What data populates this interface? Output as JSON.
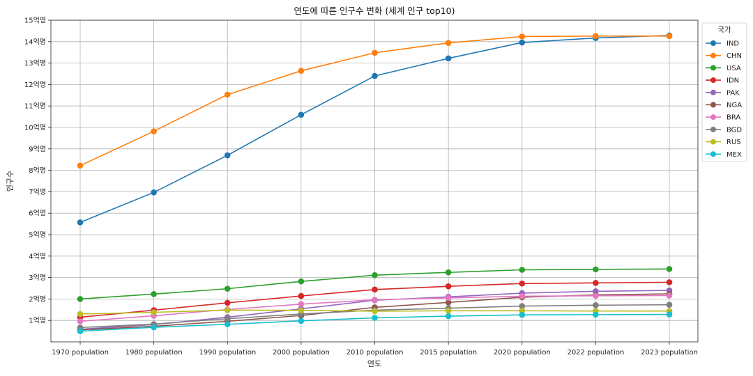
{
  "chart_data": {
    "type": "line",
    "title": "연도에 따른 인구수 변화 (세계 인구 top10)",
    "xlabel": "연도",
    "ylabel": "인구수",
    "categories": [
      "1970 population",
      "1980 population",
      "1990 population",
      "2000 population",
      "2010 population",
      "2015 population",
      "2020 population",
      "2022 population",
      "2023 population"
    ],
    "y_unit": "억명",
    "ylim": [
      0,
      15
    ],
    "yticks": [
      "1억명",
      "2억명",
      "3억명",
      "4억명",
      "5억명",
      "6억명",
      "7억명",
      "8억명",
      "9억명",
      "10억명",
      "11억명",
      "12억명",
      "13억명",
      "14억명",
      "15억명"
    ],
    "grid": true,
    "legend_title": "국가",
    "legend_position": "outside-top-right",
    "series": [
      {
        "name": "IND",
        "color": "#1f77b4",
        "values": [
          5.57,
          6.97,
          8.7,
          10.59,
          12.4,
          13.22,
          13.96,
          14.17,
          14.29
        ]
      },
      {
        "name": "CHN",
        "color": "#ff7f0e",
        "values": [
          8.22,
          9.82,
          11.53,
          12.64,
          13.48,
          13.94,
          14.24,
          14.26,
          14.26
        ]
      },
      {
        "name": "USA",
        "color": "#2ca02c",
        "values": [
          2.0,
          2.23,
          2.48,
          2.82,
          3.11,
          3.24,
          3.36,
          3.38,
          3.4
        ]
      },
      {
        "name": "IDN",
        "color": "#d62728",
        "values": [
          1.15,
          1.48,
          1.82,
          2.14,
          2.44,
          2.59,
          2.72,
          2.75,
          2.78
        ]
      },
      {
        "name": "PAK",
        "color": "#9467bd",
        "values": [
          0.59,
          0.81,
          1.15,
          1.54,
          1.94,
          2.1,
          2.27,
          2.36,
          2.4
        ]
      },
      {
        "name": "NGA",
        "color": "#8c564b",
        "values": [
          0.56,
          0.73,
          0.96,
          1.23,
          1.61,
          1.84,
          2.08,
          2.19,
          2.24
        ]
      },
      {
        "name": "BRA",
        "color": "#e377c2",
        "values": [
          0.96,
          1.22,
          1.51,
          1.76,
          1.96,
          2.05,
          2.13,
          2.15,
          2.16
        ]
      },
      {
        "name": "BGD",
        "color": "#7f7f7f",
        "values": [
          0.67,
          0.83,
          1.08,
          1.3,
          1.48,
          1.57,
          1.67,
          1.71,
          1.73
        ]
      },
      {
        "name": "RUS",
        "color": "#bcbd22",
        "values": [
          1.3,
          1.38,
          1.48,
          1.47,
          1.43,
          1.45,
          1.45,
          1.44,
          1.44
        ]
      },
      {
        "name": "MEX",
        "color": "#17becf",
        "values": [
          0.5,
          0.68,
          0.82,
          0.98,
          1.12,
          1.2,
          1.26,
          1.27,
          1.28
        ]
      }
    ]
  }
}
